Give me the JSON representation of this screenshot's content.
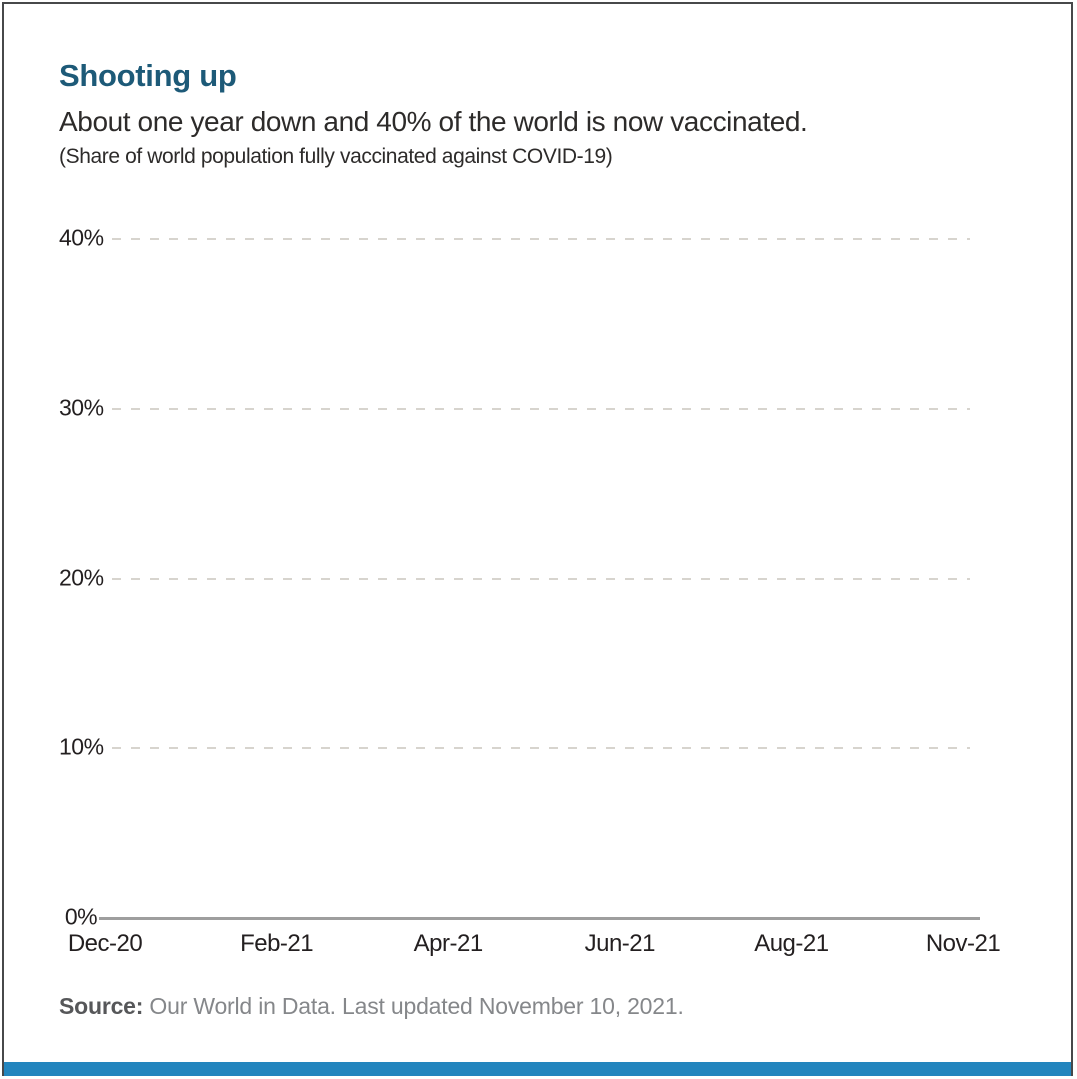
{
  "header": {
    "title": "Shooting up",
    "subtitle": "About one year down and 40% of the world is now vaccinated.",
    "note": "(Share of world population fully vaccinated against COVID-19)"
  },
  "chart_data": {
    "type": "line",
    "title": "Shooting up",
    "subtitle": "About one year down and 40% of the world is now vaccinated.",
    "unit_note": "(Share of world population fully vaccinated against COVID-19)",
    "y_ticks": [
      "40%",
      "30%",
      "20%",
      "10%",
      "0%"
    ],
    "x_ticks": [
      "Dec-20",
      "Feb-21",
      "Apr-21",
      "Jun-21",
      "Aug-21",
      "Nov-21"
    ],
    "ylim": [
      0,
      40
    ],
    "x_range": [
      "Dec-20",
      "Nov-21"
    ],
    "grid": "horizontal dashed gridlines at 10%, 20%, 30%, 40%; solid baseline at 0%",
    "legend": "none",
    "series": []
  },
  "source": {
    "label": "Source:",
    "text": " Our World in Data. Last updated November 10, 2021."
  },
  "colors": {
    "title": "#1d5a78",
    "text": "#2d2b2a",
    "tick_label": "#231f20",
    "gridline": "#d7d4ce",
    "axis_line": "#9e9e9e",
    "source_label": "#565759",
    "source_text": "#85878a",
    "accent_bar": "#2385be",
    "border": "#47484a"
  }
}
